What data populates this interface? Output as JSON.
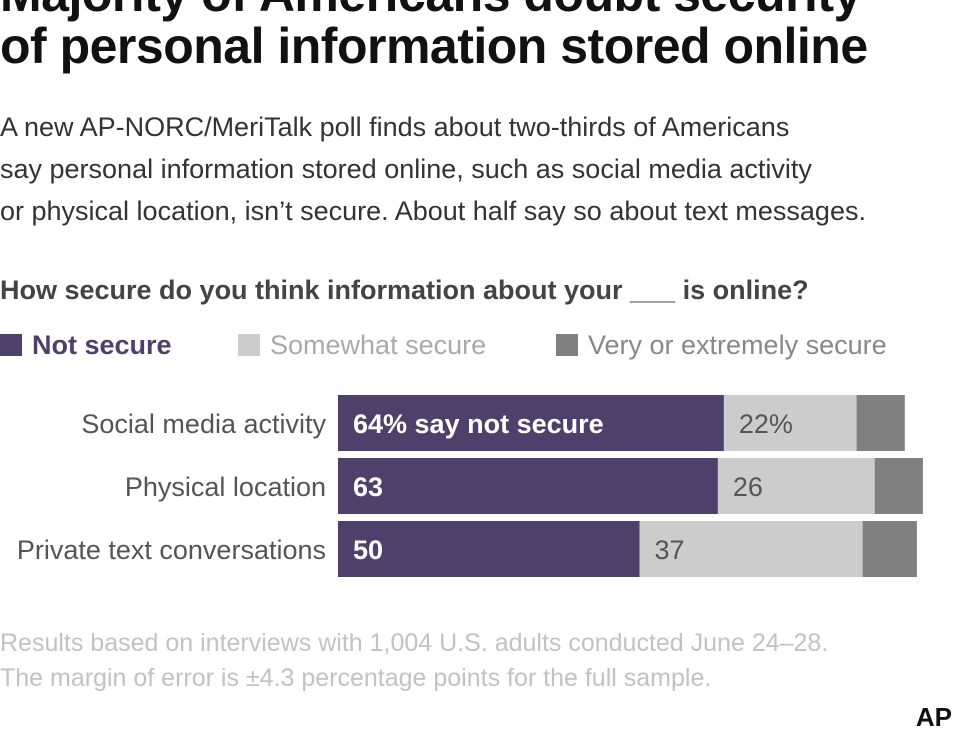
{
  "title_lines": [
    "Majority of Americans doubt security",
    "of personal information stored online"
  ],
  "subtitle_lines": [
    "A new AP-NORC/MeriTalk poll finds about two-thirds of Americans",
    "say personal information stored online, such as social media activity",
    "or physical location, isn’t secure. About half say so about text messages."
  ],
  "footnote_lines": [
    "Results based on interviews with 1,004 U.S. adults conducted June 24–28.",
    "The margin of error is ±4.3 percentage points for the full sample."
  ],
  "credit": "AP",
  "chart_data": {
    "type": "bar",
    "orientation": "horizontal",
    "stacked": true,
    "question": "How secure do you think information about your ___ is online?",
    "categories": [
      "Social media activity",
      "Physical location",
      "Private text conversations"
    ],
    "series": [
      {
        "name": "Not secure",
        "color": "#4f3f6b",
        "values": [
          64,
          63,
          50
        ]
      },
      {
        "name": "Somewhat secure",
        "color": "#cccccc",
        "values": [
          22,
          26,
          37
        ]
      },
      {
        "name": "Very or extremely secure",
        "color": "#808080",
        "values": [
          8,
          8,
          9
        ]
      }
    ],
    "data_labels": [
      [
        "64% say not secure",
        "22%"
      ],
      [
        "63",
        "26"
      ],
      [
        "50",
        "37"
      ]
    ],
    "xlim": [
      0,
      100
    ],
    "legend_position": "top",
    "grid": false
  }
}
